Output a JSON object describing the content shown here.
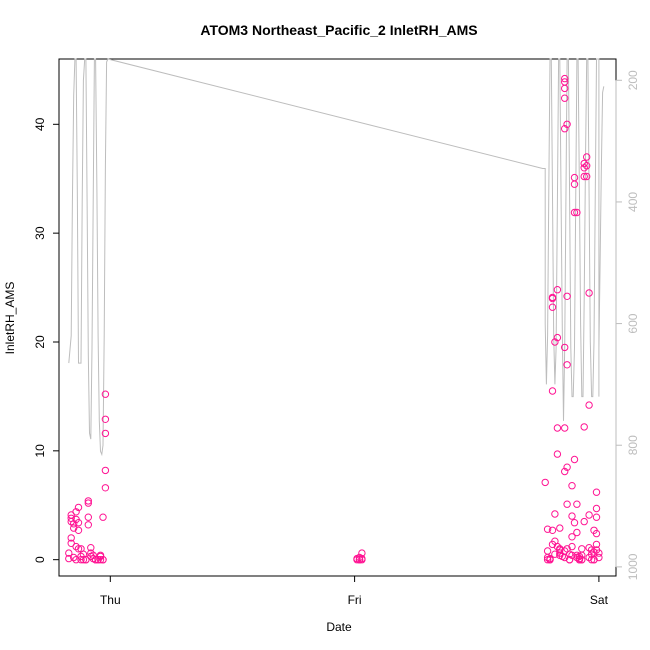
{
  "chart_data": {
    "type": "scatter",
    "title": "ATOM3 Northeast_Pacific_2 InletRH_AMS",
    "xlabel": "Date",
    "ylabel": "InletRH_AMS",
    "x_tick_labels": [
      "Thu",
      "Fri",
      "Sat"
    ],
    "x_tick_values": [
      0,
      1,
      2
    ],
    "x_range": [
      -0.21,
      2.07
    ],
    "y_ticks": [
      0,
      10,
      20,
      30,
      40
    ],
    "y_range": [
      -1.5,
      46
    ],
    "y2_ticks": [
      200,
      400,
      600,
      800,
      1000
    ],
    "y2_range": [
      1015,
      165
    ],
    "y2_reversed": true,
    "marker_color": "#ff1493",
    "line_color": "#bdbdbd",
    "grid": false,
    "series": [
      {
        "marker": "circle",
        "points": [
          [
            -0.17,
            0.1
          ],
          [
            -0.17,
            0.6
          ],
          [
            -0.16,
            1.5
          ],
          [
            -0.16,
            2.0
          ],
          [
            -0.16,
            3.5
          ],
          [
            -0.16,
            3.8
          ],
          [
            -0.16,
            4.1
          ],
          [
            -0.15,
            3.3
          ],
          [
            -0.15,
            2.9
          ],
          [
            -0.15,
            0.2
          ],
          [
            -0.14,
            1.2
          ],
          [
            -0.14,
            3.7
          ],
          [
            -0.14,
            4.4
          ],
          [
            -0.14,
            0.0
          ],
          [
            -0.13,
            4.8
          ],
          [
            -0.13,
            3.4
          ],
          [
            -0.13,
            2.7
          ],
          [
            -0.13,
            1.0
          ],
          [
            -0.12,
            0.3
          ],
          [
            -0.12,
            0.0
          ],
          [
            -0.12,
            1.0
          ],
          [
            -0.11,
            0.5
          ],
          [
            -0.11,
            0.0
          ],
          [
            -0.1,
            0.0
          ],
          [
            -0.1,
            0.0
          ],
          [
            -0.09,
            5.4
          ],
          [
            -0.09,
            5.2
          ],
          [
            -0.09,
            3.9
          ],
          [
            -0.09,
            3.2
          ],
          [
            -0.08,
            1.1
          ],
          [
            -0.08,
            0.6
          ],
          [
            -0.08,
            0.3
          ],
          [
            -0.07,
            0.4
          ],
          [
            -0.07,
            0.1
          ],
          [
            -0.06,
            0.0
          ],
          [
            -0.06,
            0.0
          ],
          [
            -0.05,
            0.0
          ],
          [
            -0.05,
            0.0
          ],
          [
            -0.04,
            0.4
          ],
          [
            -0.04,
            0.0
          ],
          [
            -0.04,
            0.3
          ],
          [
            -0.03,
            0.0
          ],
          [
            -0.03,
            0.0
          ],
          [
            -0.02,
            15.2
          ],
          [
            -0.02,
            12.9
          ],
          [
            -0.02,
            11.6
          ],
          [
            -0.02,
            8.2
          ],
          [
            -0.02,
            6.6
          ],
          [
            -0.03,
            3.9
          ],
          [
            1.01,
            0.0
          ],
          [
            1.01,
            0.1
          ],
          [
            1.02,
            0.0
          ],
          [
            1.02,
            0.2
          ],
          [
            1.03,
            0.1
          ],
          [
            1.03,
            0.6
          ],
          [
            1.03,
            0.0
          ],
          [
            1.02,
            0.0
          ],
          [
            1.78,
            7.1
          ],
          [
            1.79,
            2.8
          ],
          [
            1.79,
            0.8
          ],
          [
            1.79,
            0.2
          ],
          [
            1.79,
            0.0
          ],
          [
            1.8,
            0.0
          ],
          [
            1.8,
            0.1
          ],
          [
            1.8,
            0.0
          ],
          [
            1.81,
            15.5
          ],
          [
            1.81,
            23.2
          ],
          [
            1.81,
            24.0
          ],
          [
            1.81,
            24.1
          ],
          [
            1.81,
            2.7
          ],
          [
            1.81,
            1.4
          ],
          [
            1.82,
            20.0
          ],
          [
            1.82,
            0.5
          ],
          [
            1.82,
            1.7
          ],
          [
            1.82,
            4.2
          ],
          [
            1.83,
            20.4
          ],
          [
            1.83,
            24.8
          ],
          [
            1.83,
            12.1
          ],
          [
            1.83,
            9.7
          ],
          [
            1.83,
            1.2
          ],
          [
            1.84,
            0.9
          ],
          [
            1.84,
            0.4
          ],
          [
            1.84,
            1.0
          ],
          [
            1.84,
            2.9
          ],
          [
            1.84,
            0.6
          ],
          [
            1.85,
            0.3
          ],
          [
            1.86,
            12.1
          ],
          [
            1.86,
            19.5
          ],
          [
            1.86,
            8.1
          ],
          [
            1.86,
            0.8
          ],
          [
            1.86,
            0.2
          ],
          [
            1.87,
            17.9
          ],
          [
            1.87,
            24.2
          ],
          [
            1.87,
            8.5
          ],
          [
            1.87,
            5.1
          ],
          [
            1.87,
            1.0
          ],
          [
            1.88,
            0.5
          ],
          [
            1.88,
            0.0
          ],
          [
            1.88,
            0.0
          ],
          [
            1.89,
            0.4
          ],
          [
            1.89,
            1.2
          ],
          [
            1.89,
            2.1
          ],
          [
            1.89,
            4.0
          ],
          [
            1.89,
            6.8
          ],
          [
            1.9,
            9.2
          ],
          [
            1.9,
            3.4
          ],
          [
            1.9,
            31.9
          ],
          [
            1.9,
            34.5
          ],
          [
            1.9,
            35.1
          ],
          [
            1.91,
            31.9
          ],
          [
            1.91,
            5.1
          ],
          [
            1.91,
            2.5
          ],
          [
            1.91,
            0.4
          ],
          [
            1.91,
            0.2
          ],
          [
            1.92,
            0.0
          ],
          [
            1.92,
            0.0
          ],
          [
            1.92,
            0.1
          ],
          [
            1.93,
            0.0
          ],
          [
            1.93,
            0.4
          ],
          [
            1.93,
            0.0
          ],
          [
            1.93,
            1.0
          ],
          [
            1.94,
            3.5
          ],
          [
            1.94,
            12.2
          ],
          [
            1.94,
            36.0
          ],
          [
            1.94,
            36.4
          ],
          [
            1.94,
            35.2
          ],
          [
            1.95,
            37.0
          ],
          [
            1.95,
            35.2
          ],
          [
            1.95,
            36.2
          ],
          [
            1.96,
            14.2
          ],
          [
            1.96,
            24.5
          ],
          [
            1.96,
            4.1
          ],
          [
            1.96,
            1.1
          ],
          [
            1.96,
            0.2
          ],
          [
            1.97,
            0.5
          ],
          [
            1.97,
            0.9
          ],
          [
            1.97,
            0.0
          ],
          [
            1.98,
            0.0
          ],
          [
            1.98,
            0.7
          ],
          [
            1.98,
            2.7
          ],
          [
            1.99,
            4.7
          ],
          [
            1.99,
            6.2
          ],
          [
            1.99,
            3.9
          ],
          [
            1.99,
            2.4
          ],
          [
            1.99,
            1.4
          ],
          [
            1.99,
            0.9
          ],
          [
            2.0,
            0.6
          ],
          [
            2.0,
            0.2
          ],
          [
            1.98,
            0.0
          ],
          [
            1.92,
            0.3
          ],
          [
            1.86,
            44.2
          ],
          [
            1.86,
            43.9
          ],
          [
            1.86,
            43.3
          ],
          [
            1.86,
            42.4
          ],
          [
            1.86,
            39.6
          ],
          [
            1.87,
            40.0
          ]
        ]
      },
      {
        "marker": "line",
        "axis": "right",
        "points": [
          [
            -0.17,
            665
          ],
          [
            -0.16,
            620
          ],
          [
            -0.155,
            400
          ],
          [
            -0.15,
            225
          ],
          [
            -0.145,
            165
          ],
          [
            -0.14,
            165
          ],
          [
            -0.135,
            380
          ],
          [
            -0.13,
            665
          ],
          [
            -0.12,
            665
          ],
          [
            -0.115,
            400
          ],
          [
            -0.11,
            200
          ],
          [
            -0.105,
            165
          ],
          [
            -0.1,
            165
          ],
          [
            -0.095,
            400
          ],
          [
            -0.09,
            650
          ],
          [
            -0.085,
            780
          ],
          [
            -0.08,
            790
          ],
          [
            -0.075,
            640
          ],
          [
            -0.07,
            400
          ],
          [
            -0.065,
            165
          ],
          [
            -0.06,
            165
          ],
          [
            -0.055,
            380
          ],
          [
            -0.05,
            620
          ],
          [
            -0.045,
            760
          ],
          [
            -0.04,
            810
          ],
          [
            -0.035,
            815
          ],
          [
            -0.03,
            800
          ],
          [
            -0.025,
            620
          ],
          [
            -0.02,
            340
          ],
          [
            -0.015,
            170
          ],
          [
            -0.01,
            165
          ],
          [
            1.77,
            345
          ],
          [
            1.78,
            345
          ],
          [
            1.78,
            600
          ],
          [
            1.785,
            700
          ],
          [
            1.79,
            620
          ],
          [
            1.795,
            380
          ],
          [
            1.8,
            165
          ],
          [
            1.805,
            165
          ],
          [
            1.81,
            390
          ],
          [
            1.815,
            620
          ],
          [
            1.82,
            700
          ],
          [
            1.825,
            640
          ],
          [
            1.83,
            400
          ],
          [
            1.835,
            165
          ],
          [
            1.84,
            165
          ],
          [
            1.845,
            380
          ],
          [
            1.85,
            610
          ],
          [
            1.855,
            760
          ],
          [
            1.86,
            640
          ],
          [
            1.865,
            400
          ],
          [
            1.87,
            165
          ],
          [
            1.875,
            165
          ],
          [
            1.88,
            390
          ],
          [
            1.885,
            640
          ],
          [
            1.89,
            720
          ],
          [
            1.895,
            720
          ],
          [
            1.9,
            640
          ],
          [
            1.905,
            400
          ],
          [
            1.91,
            165
          ],
          [
            1.915,
            165
          ],
          [
            1.92,
            380
          ],
          [
            1.925,
            600
          ],
          [
            1.93,
            720
          ],
          [
            1.935,
            720
          ],
          [
            1.94,
            560
          ],
          [
            1.945,
            330
          ],
          [
            1.95,
            165
          ],
          [
            1.955,
            165
          ],
          [
            1.96,
            390
          ],
          [
            1.965,
            630
          ],
          [
            1.97,
            720
          ],
          [
            1.975,
            720
          ],
          [
            1.98,
            630
          ],
          [
            1.985,
            400
          ],
          [
            1.99,
            165
          ],
          [
            1.995,
            165
          ],
          [
            2.0,
            165
          ],
          [
            2.0,
            300
          ],
          [
            2.0,
            620
          ],
          [
            2.0,
            700
          ],
          [
            2.0,
            720
          ],
          [
            2.0,
            640
          ],
          [
            2.005,
            500
          ],
          [
            2.01,
            350
          ],
          [
            2.015,
            220
          ],
          [
            2.02,
            210
          ]
        ]
      }
    ]
  }
}
